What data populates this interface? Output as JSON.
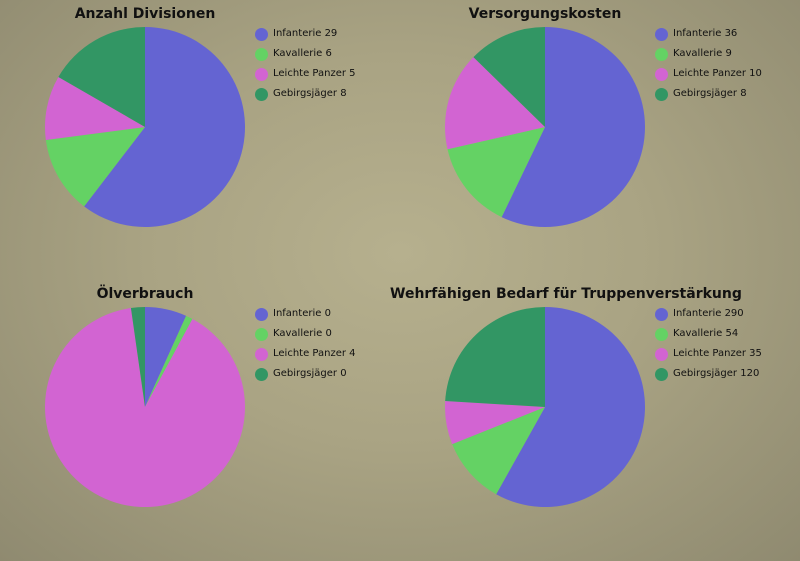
{
  "colors": {
    "infanterie": "#6464d2",
    "kavallerie": "#64d264",
    "leichte_panzer": "#d264d2",
    "gebirgsjaeger": "#329664"
  },
  "chart_data": [
    {
      "type": "pie",
      "title": "Anzahl Divisionen",
      "categories": [
        "Infanterie",
        "Kavallerie",
        "Leichte Panzer",
        "Gebirgsjäger"
      ],
      "values": [
        29,
        6,
        5,
        8
      ],
      "legend": [
        "Infanterie 29",
        "Kavallerie 6",
        "Leichte Panzer 5",
        "Gebirgsjäger 8"
      ],
      "colors": [
        "#6464d2",
        "#64d264",
        "#d264d2",
        "#329664"
      ],
      "legend_position": "right"
    },
    {
      "type": "pie",
      "title": "Versorgungskosten",
      "categories": [
        "Infanterie",
        "Kavallerie",
        "Leichte Panzer",
        "Gebirgsjäger"
      ],
      "values": [
        36,
        9,
        10,
        8
      ],
      "legend": [
        "Infanterie 36",
        "Kavallerie 9",
        "Leichte Panzer 10",
        "Gebirgsjäger 8"
      ],
      "colors": [
        "#6464d2",
        "#64d264",
        "#d264d2",
        "#329664"
      ],
      "legend_position": "right"
    },
    {
      "type": "pie",
      "title": "Ölverbrauch",
      "categories": [
        "Infanterie",
        "Kavallerie",
        "Leichte Panzer",
        "Gebirgsjäger"
      ],
      "values": [
        0.3,
        0.05,
        4,
        0.1
      ],
      "legend": [
        "Infanterie 0",
        "Kavallerie 0",
        "Leichte Panzer 4",
        "Gebirgsjäger 0"
      ],
      "colors": [
        "#6464d2",
        "#64d264",
        "#d264d2",
        "#329664"
      ],
      "legend_position": "right"
    },
    {
      "type": "pie",
      "title": "Wehrfähigen Bedarf für Truppenverstärkung",
      "categories": [
        "Infanterie",
        "Kavallerie",
        "Leichte Panzer",
        "Gebirgsjäger"
      ],
      "values": [
        290,
        54,
        35,
        120
      ],
      "legend": [
        "Infanterie 290",
        "Kavallerie 54",
        "Leichte Panzer 35",
        "Gebirgsjäger 120"
      ],
      "colors": [
        "#6464d2",
        "#64d264",
        "#d264d2",
        "#329664"
      ],
      "legend_position": "right"
    }
  ]
}
